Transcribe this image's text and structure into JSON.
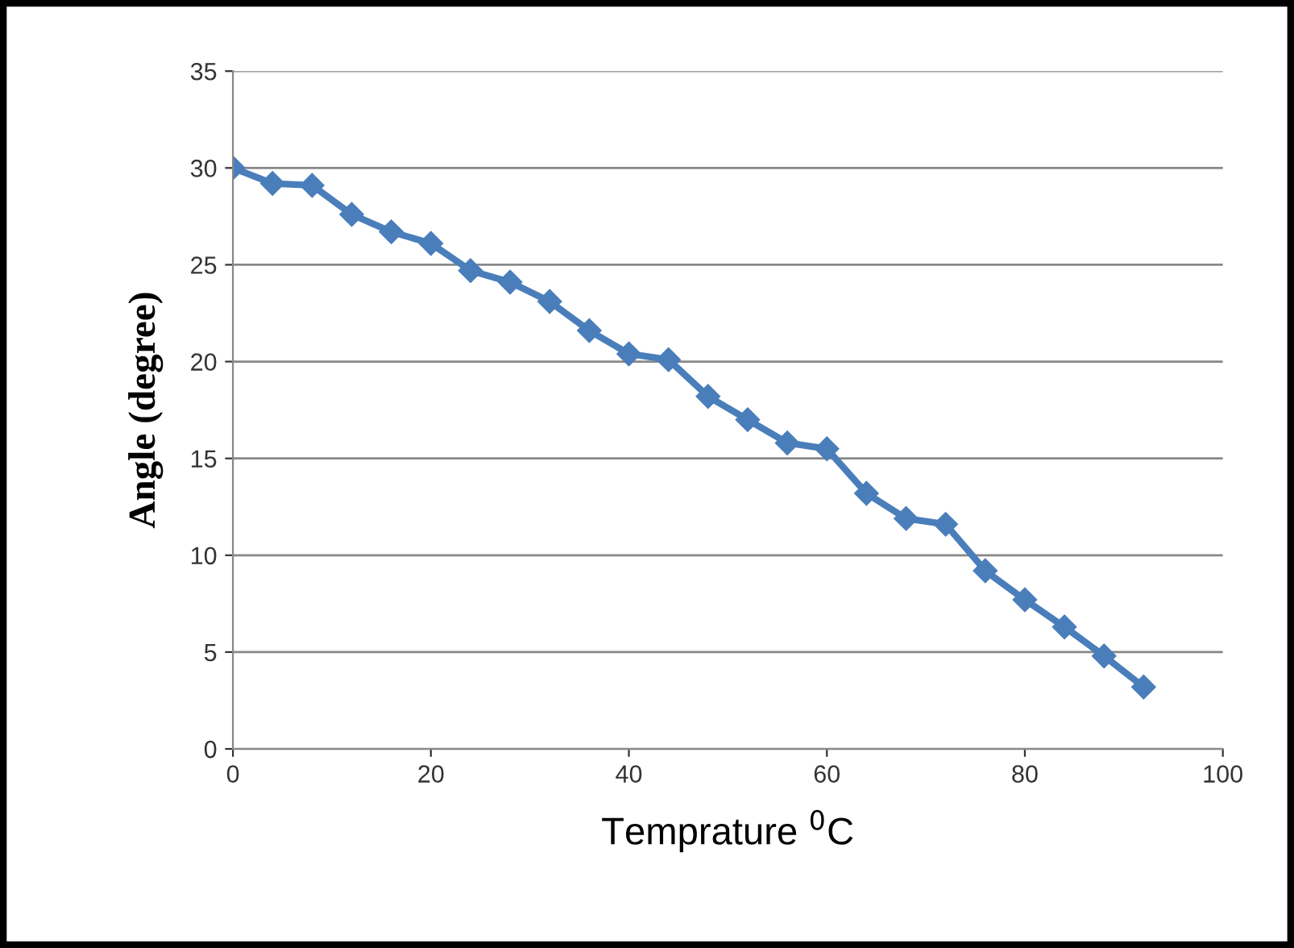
{
  "chart_data": {
    "type": "line",
    "xlabel": "Temprature $^{0}$C",
    "ylabel": "Angle (degree)",
    "x": [
      0,
      4,
      8,
      12,
      16,
      20,
      24,
      28,
      32,
      36,
      40,
      44,
      48,
      52,
      56,
      60,
      64,
      68,
      72,
      76,
      80,
      84,
      88,
      92
    ],
    "series": [
      {
        "color": "#4a7ebb",
        "values": [
          30,
          29.2,
          29.1,
          27.6,
          26.7,
          26.1,
          24.7,
          24.1,
          23.1,
          21.6,
          20.4,
          20.1,
          18.2,
          17.0,
          15.8,
          15.5,
          13.2,
          11.9,
          11.6,
          9.2,
          7.7,
          6.3,
          4.8,
          3.2
        ]
      }
    ],
    "xlim": [
      0,
      100
    ],
    "xticks": [
      0,
      20,
      40,
      60,
      80,
      100
    ],
    "ylim": [
      0,
      35
    ],
    "yticks": [
      0,
      5,
      10,
      15,
      20,
      25,
      30,
      35
    ],
    "grid": "y",
    "legend": false,
    "marker": "diamond",
    "line_style": "solid"
  }
}
